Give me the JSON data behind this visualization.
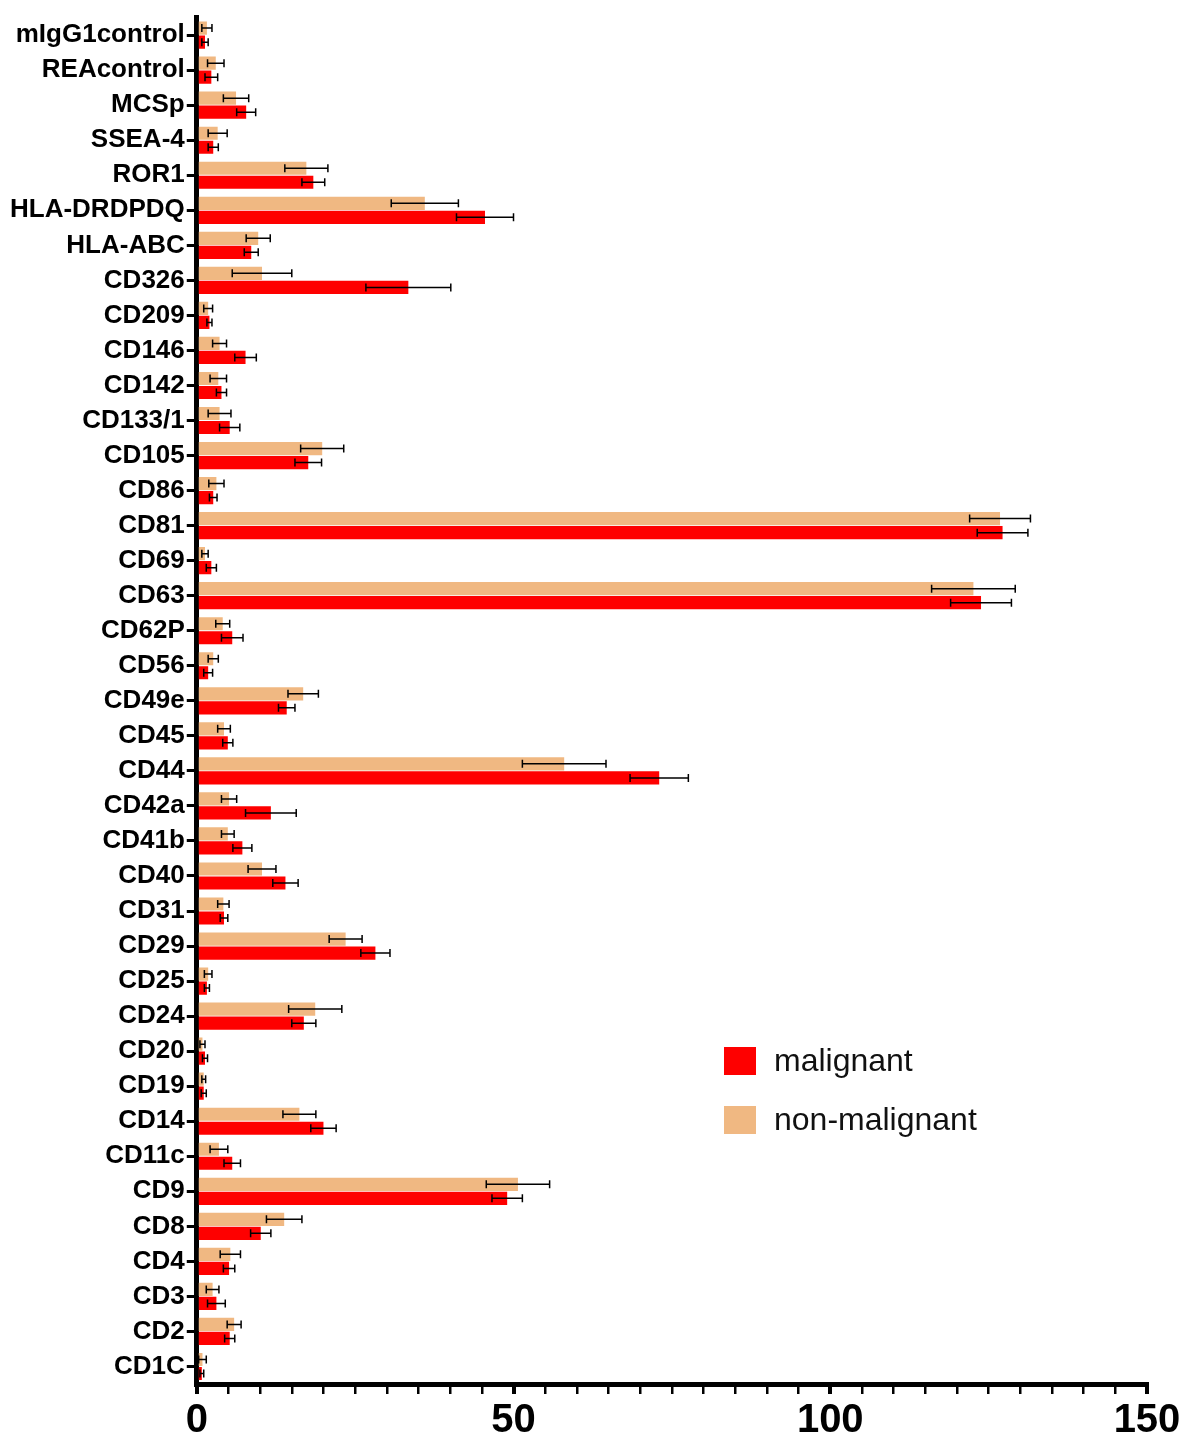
{
  "chart_data": {
    "type": "bar",
    "orientation": "horizontal",
    "categories": [
      "mIgG1control",
      "REAcontrol",
      "MCSp",
      "SSEA-4",
      "ROR1",
      "HLA-DRDPDQ",
      "HLA-ABC",
      "CD326",
      "CD209",
      "CD146",
      "CD142",
      "CD133/1",
      "CD105",
      "CD86",
      "CD81",
      "CD69",
      "CD63",
      "CD62P",
      "CD56",
      "CD49e",
      "CD45",
      "CD44",
      "CD42a",
      "CD41b",
      "CD40",
      "CD31",
      "CD29",
      "CD25",
      "CD24",
      "CD20",
      "CD19",
      "CD14",
      "CD11c",
      "CD9",
      "CD8",
      "CD4",
      "CD3",
      "CD2",
      "CD1C"
    ],
    "series": [
      {
        "name": "malignant",
        "color": "#fe0000",
        "values": [
          1.3,
          2.3,
          7.8,
          2.6,
          18.4,
          45.5,
          8.6,
          33.4,
          2.0,
          7.7,
          3.9,
          5.2,
          17.6,
          2.6,
          127.2,
          2.3,
          123.8,
          5.6,
          1.8,
          14.2,
          4.9,
          73.0,
          11.7,
          7.2,
          14.0,
          4.3,
          28.2,
          1.6,
          16.9,
          1.3,
          1.1,
          20.0,
          5.6,
          49.0,
          10.1,
          5.1,
          3.1,
          5.2,
          0.8
        ],
        "errors": [
          0.5,
          1.0,
          1.5,
          0.8,
          1.8,
          4.5,
          1.1,
          6.7,
          0.4,
          1.7,
          0.8,
          1.6,
          2.1,
          0.6,
          4.0,
          0.8,
          4.8,
          1.7,
          0.7,
          1.3,
          0.8,
          4.6,
          4.0,
          1.5,
          2.0,
          0.6,
          2.3,
          0.4,
          1.9,
          0.4,
          0.4,
          2.0,
          1.3,
          2.4,
          1.6,
          0.9,
          1.4,
          0.8,
          0.3
        ]
      },
      {
        "name": "non-malignant",
        "color": "#f0b882",
        "values": [
          1.6,
          3.0,
          6.2,
          3.3,
          17.3,
          36.0,
          9.7,
          10.3,
          1.8,
          3.6,
          3.4,
          3.6,
          19.8,
          3.1,
          126.8,
          1.3,
          122.6,
          4.1,
          2.6,
          16.8,
          4.3,
          58.0,
          5.1,
          4.9,
          10.3,
          4.2,
          23.5,
          1.8,
          18.7,
          0.9,
          1.1,
          16.2,
          3.5,
          50.7,
          13.8,
          5.3,
          2.5,
          5.9,
          0.9
        ],
        "errors": [
          0.8,
          1.3,
          2.0,
          1.5,
          3.4,
          5.3,
          1.9,
          4.7,
          0.7,
          1.1,
          1.3,
          1.8,
          3.4,
          1.2,
          4.8,
          0.5,
          6.6,
          1.1,
          0.8,
          2.4,
          1.0,
          6.6,
          1.2,
          1.0,
          2.2,
          0.9,
          2.6,
          0.6,
          4.2,
          0.4,
          0.3,
          2.6,
          1.4,
          5.0,
          2.8,
          1.6,
          1.0,
          1.1,
          0.6
        ]
      }
    ],
    "xlim": [
      0,
      150
    ],
    "xticks": [
      0,
      {
        "value": 5,
        "label": null
      },
      {
        "value": 10,
        "label": null
      },
      {
        "value": 15,
        "label": null
      },
      {
        "value": 20,
        "label": null
      },
      {
        "value": 25,
        "label": null
      },
      {
        "value": 30,
        "label": null
      },
      {
        "value": 35,
        "label": null
      },
      {
        "value": 40,
        "label": null
      },
      {
        "value": 45,
        "label": null
      },
      50,
      {
        "value": 55,
        "label": null
      },
      {
        "value": 60,
        "label": null
      },
      {
        "value": 65,
        "label": null
      },
      {
        "value": 70,
        "label": null
      },
      {
        "value": 75,
        "label": null
      },
      {
        "value": 80,
        "label": null
      },
      {
        "value": 85,
        "label": null
      },
      {
        "value": 90,
        "label": null
      },
      {
        "value": 95,
        "label": null
      },
      100,
      {
        "value": 105,
        "label": null
      },
      {
        "value": 110,
        "label": null
      },
      {
        "value": 115,
        "label": null
      },
      {
        "value": 120,
        "label": null
      },
      {
        "value": 125,
        "label": null
      },
      {
        "value": 130,
        "label": null
      },
      {
        "value": 135,
        "label": null
      },
      {
        "value": 140,
        "label": null
      },
      {
        "value": 145,
        "label": null
      },
      150
    ],
    "grid": false,
    "legend": "bottom right"
  }
}
